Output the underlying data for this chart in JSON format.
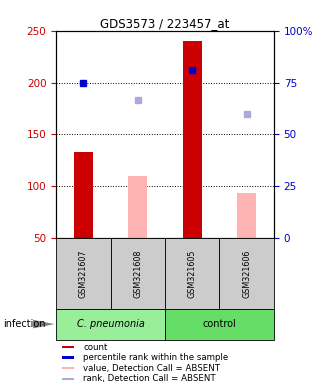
{
  "title": "GDS3573 / 223457_at",
  "samples": [
    "GSM321607",
    "GSM321608",
    "GSM321605",
    "GSM321606"
  ],
  "bar_values_red": [
    133,
    null,
    240,
    null
  ],
  "bar_values_pink": [
    null,
    110,
    null,
    93
  ],
  "dot_values_blue": [
    200,
    null,
    212,
    null
  ],
  "dot_values_lightblue": [
    null,
    183,
    null,
    170
  ],
  "ylim_left": [
    50,
    250
  ],
  "ylim_right": [
    0,
    100
  ],
  "yticks_left": [
    50,
    100,
    150,
    200,
    250
  ],
  "yticks_right": [
    0,
    25,
    50,
    75,
    100
  ],
  "ytick_labels_right": [
    "0",
    "25",
    "50",
    "75",
    "100%"
  ],
  "hlines": [
    100,
    150,
    200
  ],
  "color_red": "#cc0000",
  "color_pink": "#ffb3b3",
  "color_blue": "#0000cc",
  "color_lightblue": "#aaaadd",
  "color_group1_bg": "#99ee99",
  "color_group2_bg": "#66dd66",
  "color_sample_bg": "#cccccc",
  "bar_width": 0.35,
  "legend_items": [
    {
      "label": "count",
      "color": "#cc0000"
    },
    {
      "label": "percentile rank within the sample",
      "color": "#0000cc"
    },
    {
      "label": "value, Detection Call = ABSENT",
      "color": "#ffb3b3"
    },
    {
      "label": "rank, Detection Call = ABSENT",
      "color": "#aaaadd"
    }
  ],
  "infection_label": "infection",
  "group1_label": "C. pneumonia",
  "group2_label": "control"
}
